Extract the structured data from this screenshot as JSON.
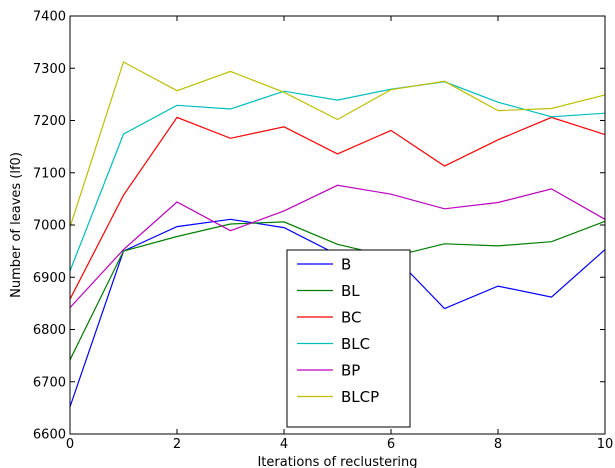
{
  "chart_data": {
    "type": "line",
    "title": "",
    "xlabel": "Iterations of reclustering",
    "ylabel": "Number of leaves (lf0)",
    "xlim": [
      0,
      10
    ],
    "ylim": [
      6600,
      7400
    ],
    "xticks": [
      0,
      2,
      4,
      6,
      8,
      10
    ],
    "yticks": [
      6600,
      6700,
      6800,
      6900,
      7000,
      7100,
      7200,
      7300,
      7400
    ],
    "grid": false,
    "legend_position": "lower-center",
    "x": [
      0,
      1,
      2,
      3,
      4,
      5,
      6,
      7,
      8,
      9,
      10
    ],
    "series": [
      {
        "name": "B",
        "color": "#0000ff",
        "values": [
          6652,
          6950,
          6997,
          7011,
          6995,
          6943,
          6946,
          6840,
          6883,
          6862,
          6953
        ]
      },
      {
        "name": "BL",
        "color": "#008000",
        "values": [
          6742,
          6950,
          6978,
          7002,
          7006,
          6963,
          6939,
          6964,
          6960,
          6968,
          7007
        ]
      },
      {
        "name": "BC",
        "color": "#ff0000",
        "values": [
          6858,
          7057,
          7206,
          7166,
          7188,
          7136,
          7181,
          7113,
          7163,
          7206,
          7173
        ]
      },
      {
        "name": "BLC",
        "color": "#00bfbf",
        "values": [
          6912,
          7174,
          7229,
          7222,
          7256,
          7239,
          7260,
          7274,
          7235,
          7207,
          7214
        ]
      },
      {
        "name": "BP",
        "color": "#bf00bf",
        "values": [
          6842,
          6953,
          7044,
          6989,
          7027,
          7076,
          7059,
          7031,
          7043,
          7069,
          7011
        ]
      },
      {
        "name": "BLCP",
        "color": "#bfbf00",
        "values": [
          6996,
          7312,
          7257,
          7294,
          7254,
          7202,
          7259,
          7275,
          7219,
          7223,
          7249
        ]
      }
    ]
  }
}
